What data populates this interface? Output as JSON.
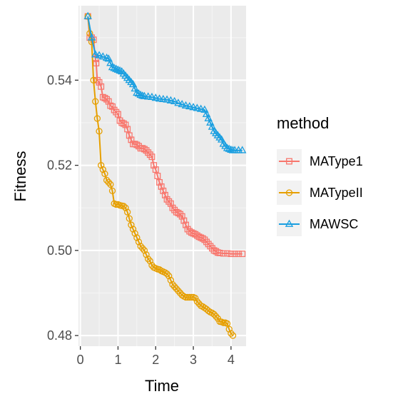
{
  "chart_data": {
    "type": "line",
    "xlabel": "Time",
    "ylabel": "Fitness",
    "xlim": [
      -0.05,
      4.4
    ],
    "ylim": [
      0.4775,
      0.5575
    ],
    "x_ticks": [
      0,
      1,
      2,
      3,
      4
    ],
    "x_tick_labels": [
      "0",
      "1",
      "2",
      "3",
      "4"
    ],
    "y_ticks": [
      0.48,
      0.5,
      0.52,
      0.54
    ],
    "y_tick_labels": [
      "0.48",
      "0.50",
      "0.52",
      "0.54"
    ],
    "grid": true,
    "legend": {
      "title": "method",
      "position": "right"
    },
    "series": [
      {
        "name": "MAType1",
        "color": "#f8766d",
        "marker": "square",
        "points": [
          [
            0.2,
            0.555
          ],
          [
            0.25,
            0.55
          ],
          [
            0.3,
            0.55
          ],
          [
            0.35,
            0.5495
          ],
          [
            0.4,
            0.545
          ],
          [
            0.42,
            0.544
          ],
          [
            0.45,
            0.54
          ],
          [
            0.5,
            0.5395
          ],
          [
            0.55,
            0.5385
          ],
          [
            0.6,
            0.536
          ],
          [
            0.65,
            0.5358
          ],
          [
            0.7,
            0.5355
          ],
          [
            0.75,
            0.535
          ],
          [
            0.8,
            0.534
          ],
          [
            0.85,
            0.5338
          ],
          [
            0.9,
            0.533
          ],
          [
            0.95,
            0.5325
          ],
          [
            1.0,
            0.532
          ],
          [
            1.05,
            0.5305
          ],
          [
            1.1,
            0.53
          ],
          [
            1.15,
            0.5298
          ],
          [
            1.2,
            0.5295
          ],
          [
            1.25,
            0.5285
          ],
          [
            1.3,
            0.527
          ],
          [
            1.35,
            0.526
          ],
          [
            1.4,
            0.525
          ],
          [
            1.45,
            0.525
          ],
          [
            1.5,
            0.5248
          ],
          [
            1.55,
            0.5245
          ],
          [
            1.6,
            0.524
          ],
          [
            1.65,
            0.524
          ],
          [
            1.7,
            0.5238
          ],
          [
            1.75,
            0.5235
          ],
          [
            1.8,
            0.523
          ],
          [
            1.85,
            0.5225
          ],
          [
            1.9,
            0.522
          ],
          [
            1.95,
            0.52
          ],
          [
            2.0,
            0.519
          ],
          [
            2.05,
            0.5175
          ],
          [
            2.1,
            0.516
          ],
          [
            2.15,
            0.515
          ],
          [
            2.2,
            0.514
          ],
          [
            2.25,
            0.513
          ],
          [
            2.3,
            0.512
          ],
          [
            2.35,
            0.5115
          ],
          [
            2.4,
            0.511
          ],
          [
            2.45,
            0.51
          ],
          [
            2.5,
            0.5095
          ],
          [
            2.55,
            0.509
          ],
          [
            2.6,
            0.5088
          ],
          [
            2.65,
            0.5085
          ],
          [
            2.7,
            0.508
          ],
          [
            2.75,
            0.507
          ],
          [
            2.8,
            0.506
          ],
          [
            2.85,
            0.505
          ],
          [
            2.9,
            0.5045
          ],
          [
            2.95,
            0.5042
          ],
          [
            3.0,
            0.504
          ],
          [
            3.05,
            0.5038
          ],
          [
            3.1,
            0.5035
          ],
          [
            3.15,
            0.5032
          ],
          [
            3.2,
            0.503
          ],
          [
            3.25,
            0.5028
          ],
          [
            3.3,
            0.5025
          ],
          [
            3.35,
            0.502
          ],
          [
            3.4,
            0.5015
          ],
          [
            3.45,
            0.501
          ],
          [
            3.5,
            0.5005
          ],
          [
            3.55,
            0.5
          ],
          [
            3.6,
            0.4998
          ],
          [
            3.65,
            0.4995
          ],
          [
            3.7,
            0.4994
          ],
          [
            3.8,
            0.4993
          ],
          [
            3.9,
            0.4993
          ],
          [
            4.0,
            0.4992
          ],
          [
            4.1,
            0.4992
          ],
          [
            4.2,
            0.4992
          ],
          [
            4.3,
            0.4992
          ]
        ]
      },
      {
        "name": "MATypeII",
        "color": "#e69f00",
        "marker": "circle",
        "points": [
          [
            0.2,
            0.555
          ],
          [
            0.25,
            0.551
          ],
          [
            0.3,
            0.549
          ],
          [
            0.35,
            0.54
          ],
          [
            0.4,
            0.535
          ],
          [
            0.45,
            0.531
          ],
          [
            0.5,
            0.528
          ],
          [
            0.55,
            0.52
          ],
          [
            0.6,
            0.519
          ],
          [
            0.65,
            0.518
          ],
          [
            0.7,
            0.5165
          ],
          [
            0.75,
            0.516
          ],
          [
            0.8,
            0.5155
          ],
          [
            0.85,
            0.514
          ],
          [
            0.9,
            0.511
          ],
          [
            0.95,
            0.5108
          ],
          [
            1.0,
            0.5108
          ],
          [
            1.05,
            0.5106
          ],
          [
            1.1,
            0.5105
          ],
          [
            1.15,
            0.5104
          ],
          [
            1.2,
            0.51
          ],
          [
            1.25,
            0.509
          ],
          [
            1.3,
            0.5075
          ],
          [
            1.35,
            0.506
          ],
          [
            1.4,
            0.505
          ],
          [
            1.45,
            0.504
          ],
          [
            1.5,
            0.503
          ],
          [
            1.55,
            0.502
          ],
          [
            1.6,
            0.501
          ],
          [
            1.65,
            0.5005
          ],
          [
            1.7,
            0.5
          ],
          [
            1.75,
            0.499
          ],
          [
            1.8,
            0.498
          ],
          [
            1.85,
            0.4975
          ],
          [
            1.9,
            0.4965
          ],
          [
            1.95,
            0.496
          ],
          [
            2.0,
            0.4958
          ],
          [
            2.05,
            0.4956
          ],
          [
            2.1,
            0.4955
          ],
          [
            2.15,
            0.4952
          ],
          [
            2.2,
            0.495
          ],
          [
            2.25,
            0.4948
          ],
          [
            2.3,
            0.4945
          ],
          [
            2.35,
            0.494
          ],
          [
            2.4,
            0.493
          ],
          [
            2.45,
            0.492
          ],
          [
            2.5,
            0.4915
          ],
          [
            2.55,
            0.491
          ],
          [
            2.6,
            0.4905
          ],
          [
            2.65,
            0.49
          ],
          [
            2.7,
            0.4895
          ],
          [
            2.75,
            0.4892
          ],
          [
            2.8,
            0.489
          ],
          [
            2.85,
            0.489
          ],
          [
            2.9,
            0.489
          ],
          [
            2.95,
            0.489
          ],
          [
            3.0,
            0.489
          ],
          [
            3.05,
            0.4888
          ],
          [
            3.1,
            0.488
          ],
          [
            3.15,
            0.4875
          ],
          [
            3.2,
            0.487
          ],
          [
            3.25,
            0.4868
          ],
          [
            3.3,
            0.4865
          ],
          [
            3.35,
            0.4862
          ],
          [
            3.4,
            0.4858
          ],
          [
            3.45,
            0.4855
          ],
          [
            3.5,
            0.4853
          ],
          [
            3.55,
            0.485
          ],
          [
            3.6,
            0.4845
          ],
          [
            3.65,
            0.484
          ],
          [
            3.7,
            0.4833
          ],
          [
            3.75,
            0.4832
          ],
          [
            3.8,
            0.483
          ],
          [
            3.85,
            0.483
          ],
          [
            3.9,
            0.4828
          ],
          [
            3.95,
            0.4815
          ],
          [
            4.0,
            0.4805
          ],
          [
            4.05,
            0.48
          ]
        ]
      },
      {
        "name": "MAWSC",
        "color": "#1b9fe0",
        "marker": "triangle",
        "points": [
          [
            0.2,
            0.555
          ],
          [
            0.3,
            0.55
          ],
          [
            0.4,
            0.546
          ],
          [
            0.5,
            0.5458
          ],
          [
            0.6,
            0.5455
          ],
          [
            0.7,
            0.5452
          ],
          [
            0.75,
            0.545
          ],
          [
            0.8,
            0.544
          ],
          [
            0.85,
            0.543
          ],
          [
            0.9,
            0.5428
          ],
          [
            0.95,
            0.5426
          ],
          [
            1.0,
            0.5424
          ],
          [
            1.05,
            0.5422
          ],
          [
            1.1,
            0.542
          ],
          [
            1.15,
            0.5415
          ],
          [
            1.2,
            0.541
          ],
          [
            1.25,
            0.5405
          ],
          [
            1.3,
            0.54
          ],
          [
            1.35,
            0.5395
          ],
          [
            1.4,
            0.539
          ],
          [
            1.45,
            0.538
          ],
          [
            1.5,
            0.537
          ],
          [
            1.55,
            0.5368
          ],
          [
            1.6,
            0.5365
          ],
          [
            1.65,
            0.5363
          ],
          [
            1.7,
            0.5362
          ],
          [
            1.8,
            0.5361
          ],
          [
            1.9,
            0.536
          ],
          [
            2.0,
            0.5358
          ],
          [
            2.1,
            0.5356
          ],
          [
            2.2,
            0.5355
          ],
          [
            2.3,
            0.5354
          ],
          [
            2.4,
            0.5352
          ],
          [
            2.5,
            0.535
          ],
          [
            2.6,
            0.5346
          ],
          [
            2.7,
            0.5343
          ],
          [
            2.8,
            0.534
          ],
          [
            2.9,
            0.5338
          ],
          [
            3.0,
            0.5336
          ],
          [
            3.1,
            0.5334
          ],
          [
            3.2,
            0.5332
          ],
          [
            3.3,
            0.533
          ],
          [
            3.35,
            0.532
          ],
          [
            3.4,
            0.531
          ],
          [
            3.45,
            0.53
          ],
          [
            3.5,
            0.529
          ],
          [
            3.55,
            0.528
          ],
          [
            3.6,
            0.5275
          ],
          [
            3.65,
            0.527
          ],
          [
            3.7,
            0.5265
          ],
          [
            3.75,
            0.526
          ],
          [
            3.8,
            0.525
          ],
          [
            3.85,
            0.5245
          ],
          [
            3.9,
            0.524
          ],
          [
            3.95,
            0.5238
          ],
          [
            4.0,
            0.5236
          ],
          [
            4.05,
            0.5235
          ],
          [
            4.1,
            0.5235
          ],
          [
            4.2,
            0.5235
          ],
          [
            4.3,
            0.5235
          ]
        ]
      }
    ]
  }
}
